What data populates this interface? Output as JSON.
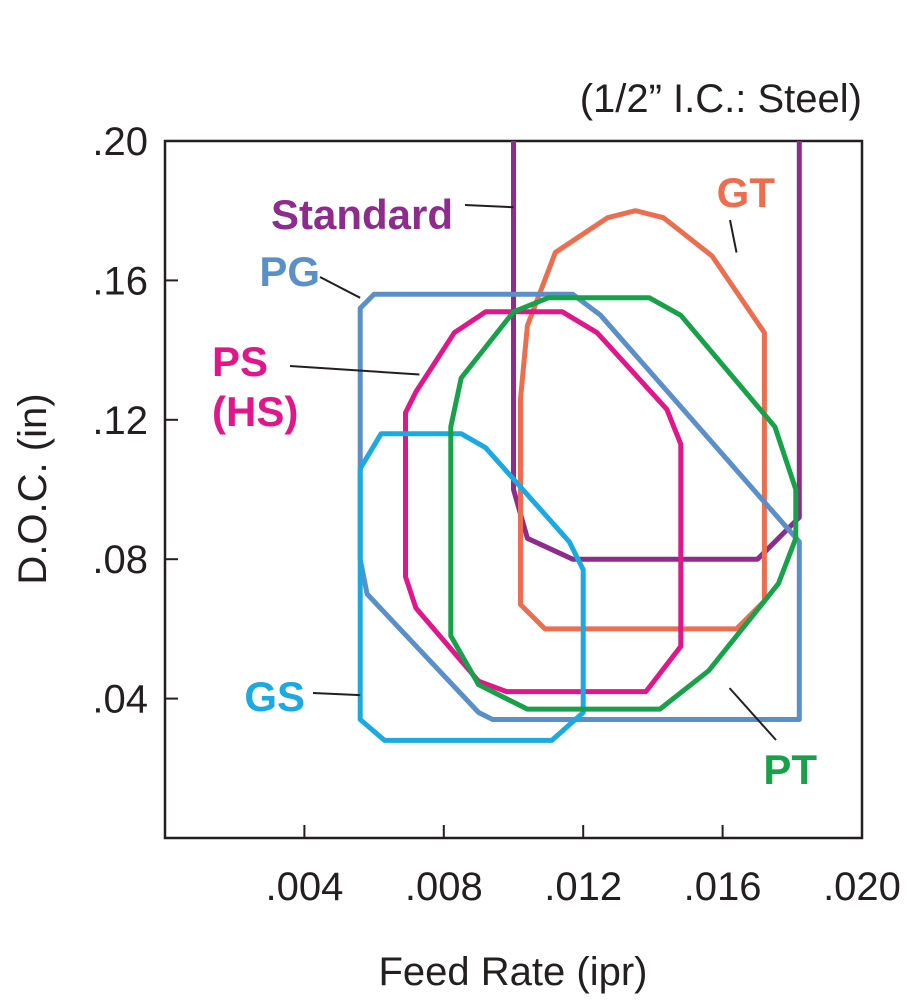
{
  "chart_data": {
    "type": "area",
    "annotation": "(1/2” I.C.: Steel)",
    "xlabel": "Feed Rate (ipr)",
    "ylabel": "D.O.C. (in)",
    "xlim": [
      0,
      0.02
    ],
    "ylim": [
      0,
      0.2
    ],
    "x_ticks": [
      {
        "value": 0.004,
        "label": ".004"
      },
      {
        "value": 0.008,
        "label": ".008"
      },
      {
        "value": 0.012,
        "label": ".012"
      },
      {
        "value": 0.016,
        "label": ".016"
      },
      {
        "value": 0.02,
        "label": ".020"
      }
    ],
    "y_ticks": [
      {
        "value": 0.04,
        "label": ".04"
      },
      {
        "value": 0.08,
        "label": ".08"
      },
      {
        "value": 0.12,
        "label": ".12"
      },
      {
        "value": 0.16,
        "label": ".16"
      },
      {
        "value": 0.2,
        "label": ".20"
      }
    ],
    "grid": false,
    "series": [
      {
        "name": "Standard",
        "color": "#8e2c8e",
        "closed": false,
        "points": [
          [
            0.01,
            0.2
          ],
          [
            0.01,
            0.1
          ],
          [
            0.0104,
            0.086
          ],
          [
            0.0117,
            0.08
          ],
          [
            0.017,
            0.08
          ],
          [
            0.0182,
            0.092
          ],
          [
            0.0182,
            0.2
          ]
        ]
      },
      {
        "name": "GT",
        "color": "#ed6e4f",
        "closed": true,
        "points": [
          [
            0.0112,
            0.168
          ],
          [
            0.0127,
            0.178
          ],
          [
            0.0135,
            0.18
          ],
          [
            0.0143,
            0.178
          ],
          [
            0.0157,
            0.167
          ],
          [
            0.0172,
            0.145
          ],
          [
            0.0172,
            0.068
          ],
          [
            0.0164,
            0.06
          ],
          [
            0.0109,
            0.06
          ],
          [
            0.0102,
            0.067
          ],
          [
            0.0102,
            0.126
          ],
          [
            0.0104,
            0.147
          ]
        ]
      },
      {
        "name": "PG",
        "color": "#5b8fc8",
        "closed": true,
        "points": [
          [
            0.006,
            0.156
          ],
          [
            0.0117,
            0.156
          ],
          [
            0.0125,
            0.15
          ],
          [
            0.0182,
            0.085
          ],
          [
            0.0182,
            0.034
          ],
          [
            0.0094,
            0.034
          ],
          [
            0.009,
            0.036
          ],
          [
            0.0058,
            0.07
          ],
          [
            0.0056,
            0.08
          ],
          [
            0.0056,
            0.152
          ]
        ]
      },
      {
        "name": "PS (HS)",
        "color": "#e2168b",
        "closed": true,
        "points": [
          [
            0.0092,
            0.151
          ],
          [
            0.0114,
            0.151
          ],
          [
            0.0124,
            0.145
          ],
          [
            0.0144,
            0.123
          ],
          [
            0.0148,
            0.113
          ],
          [
            0.0148,
            0.055
          ],
          [
            0.0138,
            0.042
          ],
          [
            0.0098,
            0.042
          ],
          [
            0.009,
            0.045
          ],
          [
            0.0072,
            0.066
          ],
          [
            0.0069,
            0.075
          ],
          [
            0.0069,
            0.122
          ],
          [
            0.0072,
            0.128
          ],
          [
            0.0083,
            0.145
          ]
        ]
      },
      {
        "name": "GS",
        "color": "#1ba9e1",
        "closed": true,
        "points": [
          [
            0.0062,
            0.116
          ],
          [
            0.0085,
            0.116
          ],
          [
            0.0092,
            0.112
          ],
          [
            0.0116,
            0.085
          ],
          [
            0.012,
            0.077
          ],
          [
            0.012,
            0.036
          ],
          [
            0.0111,
            0.028
          ],
          [
            0.0063,
            0.028
          ],
          [
            0.0056,
            0.034
          ],
          [
            0.0056,
            0.106
          ]
        ]
      },
      {
        "name": "PT",
        "color": "#17a24a",
        "closed": true,
        "points": [
          [
            0.011,
            0.155
          ],
          [
            0.0139,
            0.155
          ],
          [
            0.0148,
            0.15
          ],
          [
            0.0175,
            0.118
          ],
          [
            0.0181,
            0.1
          ],
          [
            0.0181,
            0.086
          ],
          [
            0.0176,
            0.073
          ],
          [
            0.0156,
            0.048
          ],
          [
            0.0142,
            0.037
          ],
          [
            0.0104,
            0.037
          ],
          [
            0.009,
            0.044
          ],
          [
            0.0082,
            0.058
          ],
          [
            0.0082,
            0.118
          ],
          [
            0.0085,
            0.132
          ],
          [
            0.01,
            0.151
          ]
        ]
      }
    ],
    "labels": [
      {
        "series": "Standard",
        "lines": [
          "Standard"
        ],
        "anchor": [
          0.01,
          0.181
        ]
      },
      {
        "series": "GT",
        "lines": [
          "GT"
        ],
        "anchor": [
          0.0164,
          0.168
        ]
      },
      {
        "series": "PG",
        "lines": [
          "PG"
        ],
        "anchor": [
          0.0056,
          0.155
        ]
      },
      {
        "series": "PS (HS)",
        "lines": [
          "PS",
          "(HS)"
        ],
        "anchor": [
          0.0073,
          0.133
        ]
      },
      {
        "series": "GS",
        "lines": [
          "GS"
        ],
        "anchor": [
          0.0056,
          0.041
        ]
      },
      {
        "series": "PT",
        "lines": [
          "PT"
        ],
        "anchor": [
          0.0162,
          0.043
        ]
      }
    ]
  }
}
